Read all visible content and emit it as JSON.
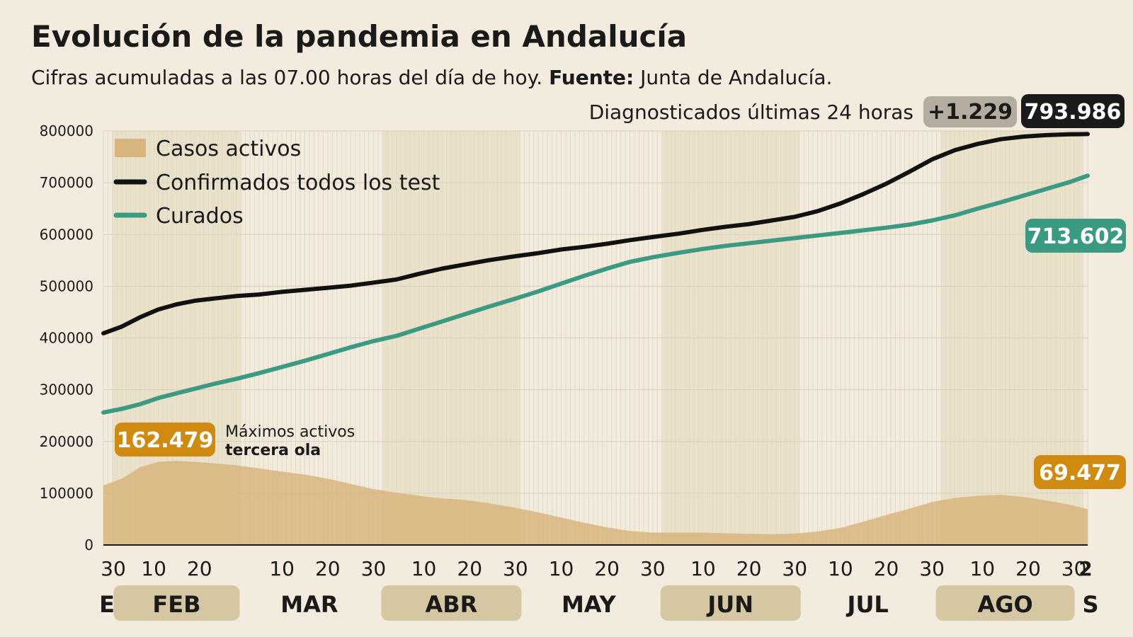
{
  "header": {
    "title": "Evolución de la pandemia en Andalucía",
    "subtitle_main": "Cifras acumuladas a las 07.00 horas del día de hoy.",
    "subtitle_source_label": "Fuente:",
    "subtitle_source": "Junta de Andalucía."
  },
  "diagnosed": {
    "label": "Diagnosticados últimas 24 horas",
    "delta": "+1.229",
    "total": "793.986"
  },
  "badges": {
    "curados_last": "713.602",
    "activos_last": "69.477",
    "activos_peak": "162.479"
  },
  "annotation": {
    "line1": "Máximos activos",
    "line2": "tercera ola"
  },
  "colors": {
    "background": "#f2ebde",
    "activos_fill": "#d8b57c",
    "confirmados": "#111111",
    "curados": "#3a9a82",
    "peak_badge": "#d08a10",
    "month_band": "#d6c7a3",
    "delta_badge": "#b4ad9f",
    "total_badge": "#1a1a1a"
  },
  "chart_data": {
    "type": "area",
    "y_ticks": [
      "800000",
      "700000",
      "600000",
      "500000",
      "400000",
      "300000",
      "200000",
      "100000",
      "0"
    ],
    "ylim": [
      0,
      800000
    ],
    "x_day_labels": [
      "30",
      "10",
      "20",
      "10",
      "20",
      "30",
      "10",
      "20",
      "30",
      "10",
      "20",
      "30",
      "10",
      "20",
      "30",
      "10",
      "20",
      "30",
      "10",
      "20",
      "30",
      "2"
    ],
    "x_months": [
      {
        "label": "E",
        "band": false
      },
      {
        "label": "FEB",
        "band": true
      },
      {
        "label": "MAR",
        "band": false
      },
      {
        "label": "ABR",
        "band": true
      },
      {
        "label": "MAY",
        "band": false
      },
      {
        "label": "JUN",
        "band": true
      },
      {
        "label": "JUL",
        "band": false
      },
      {
        "label": "AGO",
        "band": true
      },
      {
        "label": "S",
        "band": false
      }
    ],
    "grid": true,
    "legend_position": "top-left",
    "series": [
      {
        "name": "Casos activos",
        "kind": "area",
        "color": "#d8b57c",
        "points": [
          [
            "2021-01-30",
            115000
          ],
          [
            "2021-02-03",
            128000
          ],
          [
            "2021-02-07",
            150000
          ],
          [
            "2021-02-11",
            161000
          ],
          [
            "2021-02-15",
            162479
          ],
          [
            "2021-02-19",
            160500
          ],
          [
            "2021-02-23",
            158000
          ],
          [
            "2021-02-28",
            154000
          ],
          [
            "2021-03-05",
            148000
          ],
          [
            "2021-03-10",
            142000
          ],
          [
            "2021-03-15",
            136000
          ],
          [
            "2021-03-20",
            128000
          ],
          [
            "2021-03-25",
            118000
          ],
          [
            "2021-03-30",
            108000
          ],
          [
            "2021-04-04",
            101000
          ],
          [
            "2021-04-09",
            95000
          ],
          [
            "2021-04-14",
            90000
          ],
          [
            "2021-04-19",
            87000
          ],
          [
            "2021-04-24",
            81000
          ],
          [
            "2021-04-30",
            72000
          ],
          [
            "2021-05-05",
            63000
          ],
          [
            "2021-05-10",
            53000
          ],
          [
            "2021-05-15",
            43000
          ],
          [
            "2021-05-20",
            34000
          ],
          [
            "2021-05-25",
            27000
          ],
          [
            "2021-05-30",
            24000
          ],
          [
            "2021-06-05",
            24000
          ],
          [
            "2021-06-10",
            24000
          ],
          [
            "2021-06-15",
            22500
          ],
          [
            "2021-06-20",
            21500
          ],
          [
            "2021-06-25",
            21000
          ],
          [
            "2021-06-30",
            22000
          ],
          [
            "2021-07-05",
            26000
          ],
          [
            "2021-07-10",
            33000
          ],
          [
            "2021-07-15",
            45000
          ],
          [
            "2021-07-20",
            58000
          ],
          [
            "2021-07-25",
            70000
          ],
          [
            "2021-07-30",
            83000
          ],
          [
            "2021-08-04",
            91000
          ],
          [
            "2021-08-09",
            95000
          ],
          [
            "2021-08-14",
            97000
          ],
          [
            "2021-08-19",
            93000
          ],
          [
            "2021-08-24",
            86000
          ],
          [
            "2021-08-29",
            78000
          ],
          [
            "2021-09-02",
            69477
          ]
        ]
      },
      {
        "name": "Confirmados todos los test",
        "kind": "line",
        "color": "#111111",
        "points": [
          [
            "2021-01-30",
            409000
          ],
          [
            "2021-02-03",
            422000
          ],
          [
            "2021-02-07",
            440000
          ],
          [
            "2021-02-11",
            455000
          ],
          [
            "2021-02-15",
            465000
          ],
          [
            "2021-02-19",
            472000
          ],
          [
            "2021-02-23",
            476000
          ],
          [
            "2021-02-28",
            481000
          ],
          [
            "2021-03-05",
            484000
          ],
          [
            "2021-03-10",
            489000
          ],
          [
            "2021-03-15",
            493000
          ],
          [
            "2021-03-20",
            497000
          ],
          [
            "2021-03-25",
            501000
          ],
          [
            "2021-03-30",
            507000
          ],
          [
            "2021-04-04",
            513000
          ],
          [
            "2021-04-09",
            524000
          ],
          [
            "2021-04-14",
            534000
          ],
          [
            "2021-04-19",
            542000
          ],
          [
            "2021-04-24",
            550000
          ],
          [
            "2021-04-30",
            558000
          ],
          [
            "2021-05-05",
            564000
          ],
          [
            "2021-05-10",
            571000
          ],
          [
            "2021-05-15",
            576000
          ],
          [
            "2021-05-20",
            582000
          ],
          [
            "2021-05-25",
            589000
          ],
          [
            "2021-05-30",
            595000
          ],
          [
            "2021-06-05",
            602000
          ],
          [
            "2021-06-10",
            609000
          ],
          [
            "2021-06-15",
            615000
          ],
          [
            "2021-06-20",
            620000
          ],
          [
            "2021-06-25",
            627000
          ],
          [
            "2021-06-30",
            634000
          ],
          [
            "2021-07-05",
            645000
          ],
          [
            "2021-07-10",
            660000
          ],
          [
            "2021-07-15",
            678000
          ],
          [
            "2021-07-20",
            698000
          ],
          [
            "2021-07-25",
            721000
          ],
          [
            "2021-07-30",
            745000
          ],
          [
            "2021-08-04",
            763000
          ],
          [
            "2021-08-09",
            775000
          ],
          [
            "2021-08-14",
            784000
          ],
          [
            "2021-08-19",
            789000
          ],
          [
            "2021-08-24",
            792000
          ],
          [
            "2021-08-29",
            793500
          ],
          [
            "2021-09-02",
            793986
          ]
        ]
      },
      {
        "name": "Curados",
        "kind": "line",
        "color": "#3a9a82",
        "points": [
          [
            "2021-01-30",
            256000
          ],
          [
            "2021-02-03",
            263000
          ],
          [
            "2021-02-07",
            272000
          ],
          [
            "2021-02-11",
            284000
          ],
          [
            "2021-02-15",
            293000
          ],
          [
            "2021-02-19",
            302000
          ],
          [
            "2021-02-23",
            311000
          ],
          [
            "2021-02-28",
            321000
          ],
          [
            "2021-03-05",
            332000
          ],
          [
            "2021-03-10",
            344000
          ],
          [
            "2021-03-15",
            356000
          ],
          [
            "2021-03-20",
            369000
          ],
          [
            "2021-03-25",
            382000
          ],
          [
            "2021-03-30",
            394000
          ],
          [
            "2021-04-04",
            404000
          ],
          [
            "2021-04-09",
            418000
          ],
          [
            "2021-04-14",
            432000
          ],
          [
            "2021-04-19",
            446000
          ],
          [
            "2021-04-24",
            460000
          ],
          [
            "2021-04-30",
            476000
          ],
          [
            "2021-05-05",
            490000
          ],
          [
            "2021-05-10",
            505000
          ],
          [
            "2021-05-15",
            520000
          ],
          [
            "2021-05-20",
            534000
          ],
          [
            "2021-05-25",
            547000
          ],
          [
            "2021-05-30",
            556000
          ],
          [
            "2021-06-05",
            565000
          ],
          [
            "2021-06-10",
            572000
          ],
          [
            "2021-06-15",
            578000
          ],
          [
            "2021-06-20",
            583000
          ],
          [
            "2021-06-25",
            588000
          ],
          [
            "2021-06-30",
            593000
          ],
          [
            "2021-07-05",
            598000
          ],
          [
            "2021-07-10",
            603000
          ],
          [
            "2021-07-15",
            608000
          ],
          [
            "2021-07-20",
            613000
          ],
          [
            "2021-07-25",
            619000
          ],
          [
            "2021-07-30",
            627000
          ],
          [
            "2021-08-04",
            637000
          ],
          [
            "2021-08-09",
            650000
          ],
          [
            "2021-08-14",
            662000
          ],
          [
            "2021-08-19",
            675000
          ],
          [
            "2021-08-24",
            688000
          ],
          [
            "2021-08-29",
            701000
          ],
          [
            "2021-09-02",
            713602
          ]
        ]
      }
    ]
  }
}
